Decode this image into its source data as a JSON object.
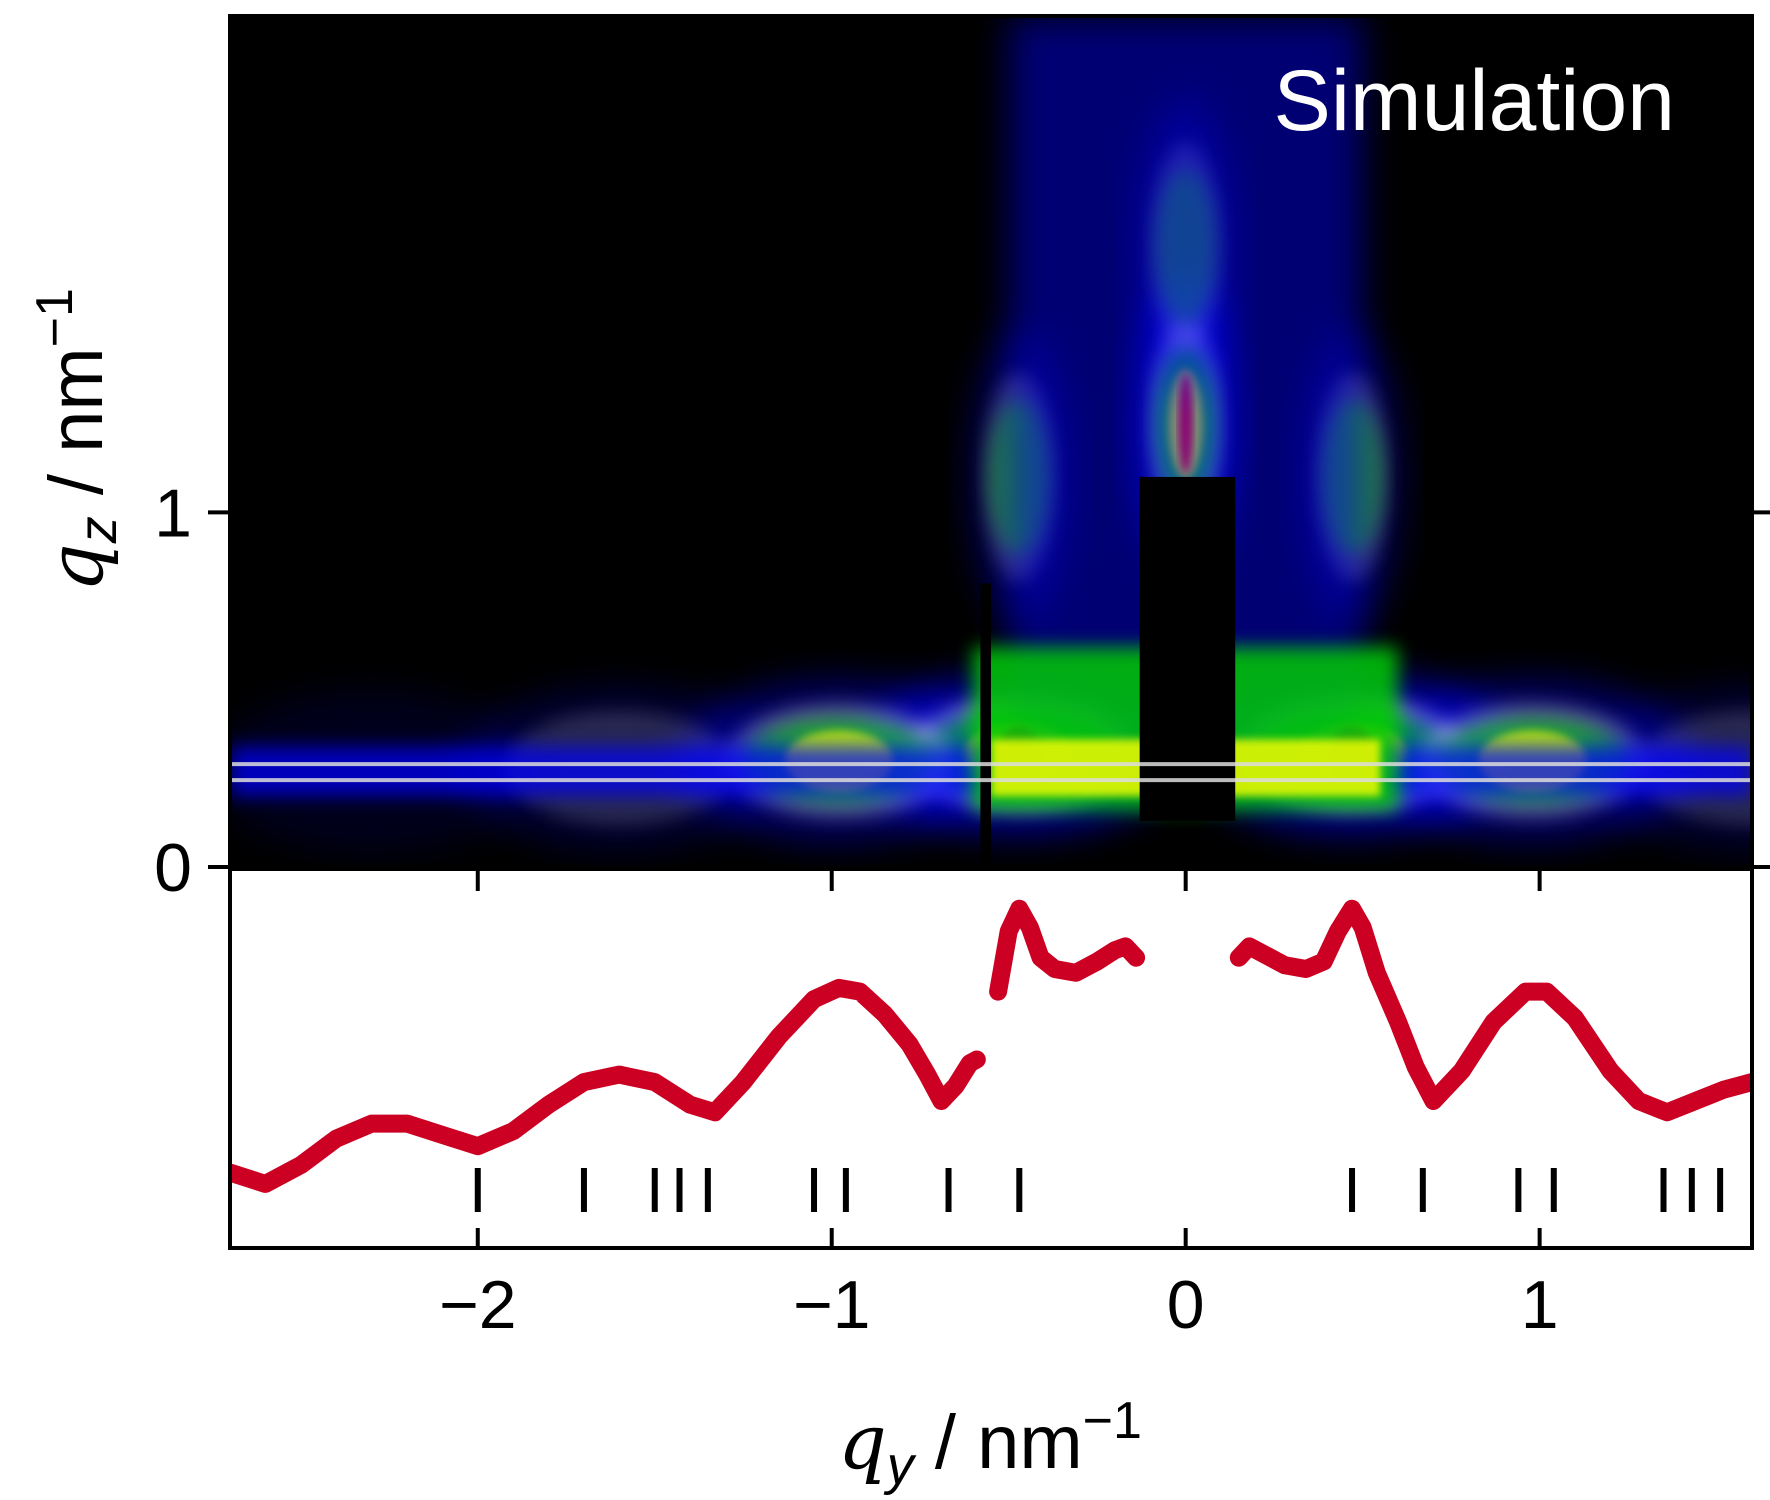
{
  "chart_data": [
    {
      "type": "heatmap",
      "annotation": "Simulation",
      "xlim": [
        -2.7,
        1.6
      ],
      "ylim": [
        0,
        2.4
      ],
      "y_ticks": [
        {
          "value": 0,
          "label": "0"
        },
        {
          "value": 1,
          "label": "1"
        }
      ],
      "ylabel": {
        "main": "q",
        "sub": "z",
        "unit": " / nm",
        "sup": "−1"
      },
      "colormap": [
        "#000000",
        "#0000ff",
        "#ffffff",
        "#00cc00",
        "#ffff00",
        "#ff0000"
      ],
      "beamstop": {
        "qy": [
          -0.13,
          0.14
        ],
        "qz": [
          0.13,
          1.1
        ]
      },
      "masked_gap_qy": [
        -0.58,
        -0.55
      ],
      "horizon_lines_qz": [
        0.29,
        0.245
      ],
      "peaks": [
        {
          "qy": 0.0,
          "qz": 1.25,
          "intensity": 1.0
        },
        {
          "qy": -0.47,
          "qz": 0.32,
          "intensity": 1.0
        },
        {
          "qy": 0.47,
          "qz": 0.32,
          "intensity": 1.0
        },
        {
          "qy": -0.98,
          "qz": 0.3,
          "intensity": 0.7
        },
        {
          "qy": 0.98,
          "qz": 0.3,
          "intensity": 0.7
        },
        {
          "qy": -1.6,
          "qz": 0.28,
          "intensity": 0.35
        },
        {
          "qy": 1.6,
          "qz": 0.28,
          "intensity": 0.35
        },
        {
          "qy": -2.3,
          "qz": 0.27,
          "intensity": 0.2
        },
        {
          "qy": 0.0,
          "qz": 1.75,
          "intensity": 0.5
        },
        {
          "qy": -0.47,
          "qz": 1.1,
          "intensity": 0.5
        },
        {
          "qy": 0.47,
          "qz": 1.1,
          "intensity": 0.5
        }
      ]
    },
    {
      "type": "line",
      "series": [
        {
          "color": "#cc0022",
          "segments": [
            [
              [
                -2.7,
                0.2
              ],
              [
                -2.6,
                0.17
              ],
              [
                -2.5,
                0.22
              ],
              [
                -2.4,
                0.29
              ],
              [
                -2.3,
                0.33
              ],
              [
                -2.2,
                0.33
              ],
              [
                -2.1,
                0.3
              ],
              [
                -2.0,
                0.27
              ],
              [
                -1.9,
                0.31
              ],
              [
                -1.8,
                0.38
              ],
              [
                -1.7,
                0.44
              ],
              [
                -1.6,
                0.46
              ],
              [
                -1.5,
                0.44
              ],
              [
                -1.4,
                0.38
              ],
              [
                -1.33,
                0.36
              ],
              [
                -1.25,
                0.44
              ],
              [
                -1.15,
                0.56
              ],
              [
                -1.05,
                0.66
              ],
              [
                -0.98,
                0.69
              ],
              [
                -0.92,
                0.68
              ],
              [
                -0.85,
                0.62
              ],
              [
                -0.78,
                0.54
              ],
              [
                -0.73,
                0.46
              ],
              [
                -0.69,
                0.39
              ],
              [
                -0.65,
                0.43
              ],
              [
                -0.61,
                0.49
              ],
              [
                -0.59,
                0.5
              ]
            ],
            [
              [
                -0.53,
                0.68
              ],
              [
                -0.5,
                0.84
              ],
              [
                -0.47,
                0.9
              ],
              [
                -0.44,
                0.85
              ],
              [
                -0.41,
                0.77
              ],
              [
                -0.37,
                0.74
              ],
              [
                -0.31,
                0.73
              ],
              [
                -0.25,
                0.76
              ],
              [
                -0.2,
                0.79
              ],
              [
                -0.17,
                0.8
              ],
              [
                -0.14,
                0.77
              ]
            ],
            [
              [
                0.15,
                0.77
              ],
              [
                0.18,
                0.8
              ],
              [
                0.22,
                0.78
              ],
              [
                0.28,
                0.75
              ],
              [
                0.34,
                0.74
              ],
              [
                0.39,
                0.76
              ],
              [
                0.43,
                0.84
              ],
              [
                0.47,
                0.9
              ],
              [
                0.5,
                0.85
              ],
              [
                0.54,
                0.73
              ],
              [
                0.6,
                0.6
              ],
              [
                0.65,
                0.48
              ],
              [
                0.7,
                0.39
              ],
              [
                0.78,
                0.47
              ],
              [
                0.87,
                0.6
              ],
              [
                0.96,
                0.68
              ],
              [
                1.02,
                0.68
              ],
              [
                1.1,
                0.61
              ],
              [
                1.2,
                0.47
              ],
              [
                1.28,
                0.39
              ],
              [
                1.36,
                0.36
              ],
              [
                1.44,
                0.39
              ],
              [
                1.52,
                0.42
              ],
              [
                1.6,
                0.44
              ]
            ]
          ]
        }
      ],
      "marker_ticks": [
        -2.0,
        -1.7,
        -1.5,
        -1.43,
        -1.35,
        -1.05,
        -0.96,
        -0.67,
        -0.47,
        0.47,
        0.67,
        0.94,
        1.04,
        1.35,
        1.43,
        1.51
      ],
      "x_ticks": [
        {
          "value": -2,
          "label": "−2"
        },
        {
          "value": -1,
          "label": "−1"
        },
        {
          "value": 0,
          "label": "0"
        },
        {
          "value": 1,
          "label": "1"
        }
      ],
      "xlabel": {
        "main": "q",
        "sub": "y",
        "unit": " / nm",
        "sup": "−1"
      }
    }
  ]
}
